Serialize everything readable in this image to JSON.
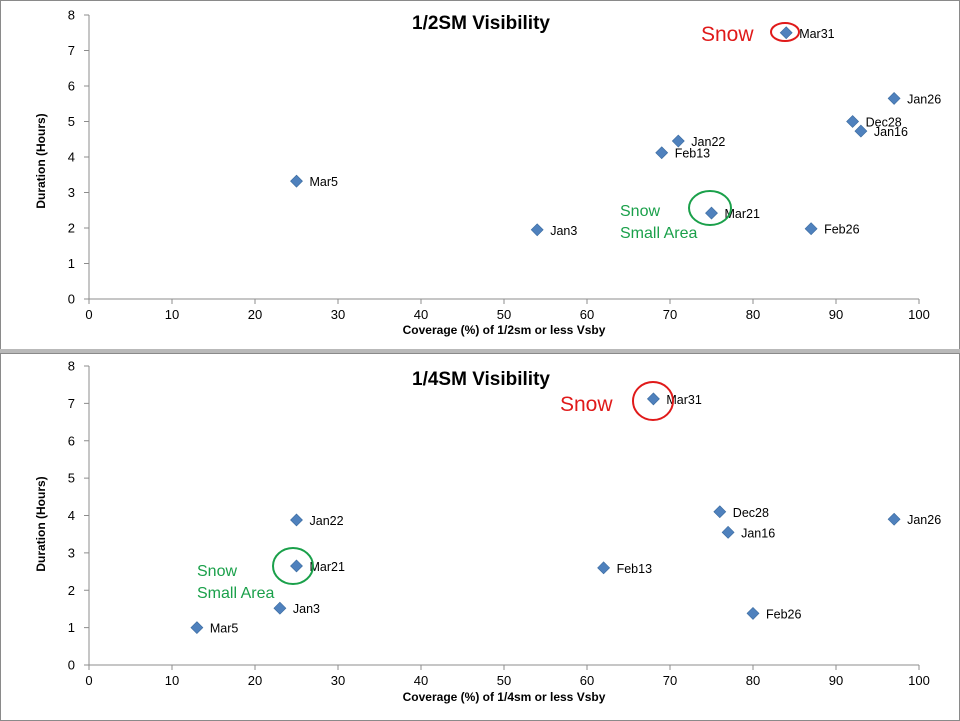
{
  "chart_data": [
    {
      "type": "scatter",
      "title": "1/2SM Visibility",
      "xlabel": "Coverage (%) of 1/2sm or less Vsby",
      "ylabel": "Duration (Hours)",
      "xlim": [
        0,
        100
      ],
      "ylim": [
        0,
        8
      ],
      "xticks": [
        0,
        10,
        20,
        30,
        40,
        50,
        60,
        70,
        80,
        90,
        100
      ],
      "yticks": [
        0,
        1,
        2,
        3,
        4,
        5,
        6,
        7,
        8
      ],
      "grid": false,
      "marker_color": "#4f81bd",
      "points": [
        {
          "label": "Mar31",
          "x": 84,
          "y": 7.5
        },
        {
          "label": "Jan26",
          "x": 97,
          "y": 5.65
        },
        {
          "label": "Dec28",
          "x": 92,
          "y": 5.0
        },
        {
          "label": "Jan16",
          "x": 93,
          "y": 4.73
        },
        {
          "label": "Jan22",
          "x": 71,
          "y": 4.45
        },
        {
          "label": "Feb13",
          "x": 69,
          "y": 4.12
        },
        {
          "label": "Mar5",
          "x": 25,
          "y": 3.32
        },
        {
          "label": "Mar21",
          "x": 75,
          "y": 2.42
        },
        {
          "label": "Jan3",
          "x": 54,
          "y": 1.95
        },
        {
          "label": "Feb26",
          "x": 87,
          "y": 1.98
        }
      ],
      "annotations": [
        {
          "point": "Mar31",
          "text": "Snow",
          "color": "#e01a1a"
        },
        {
          "point": "Mar21",
          "text": "Snow Small Area",
          "color": "#1aa04a"
        }
      ]
    },
    {
      "type": "scatter",
      "title": "1/4SM Visibility",
      "xlabel": "Coverage (%) of 1/4sm or less Vsby",
      "ylabel": "Duration (Hours)",
      "xlim": [
        0,
        100
      ],
      "ylim": [
        0,
        8
      ],
      "xticks": [
        0,
        10,
        20,
        30,
        40,
        50,
        60,
        70,
        80,
        90,
        100
      ],
      "yticks": [
        0,
        1,
        2,
        3,
        4,
        5,
        6,
        7,
        8
      ],
      "grid": false,
      "marker_color": "#4f81bd",
      "points": [
        {
          "label": "Mar31",
          "x": 68,
          "y": 7.12
        },
        {
          "label": "Dec28",
          "x": 76,
          "y": 4.1
        },
        {
          "label": "Jan26",
          "x": 97,
          "y": 3.9
        },
        {
          "label": "Jan22",
          "x": 25,
          "y": 3.88
        },
        {
          "label": "Jan16",
          "x": 77,
          "y": 3.55
        },
        {
          "label": "Mar21",
          "x": 25,
          "y": 2.65
        },
        {
          "label": "Feb13",
          "x": 62,
          "y": 2.6
        },
        {
          "label": "Jan3",
          "x": 23,
          "y": 1.52
        },
        {
          "label": "Feb26",
          "x": 80,
          "y": 1.38
        },
        {
          "label": "Mar5",
          "x": 13,
          "y": 1.0
        }
      ],
      "annotations": [
        {
          "point": "Mar31",
          "text": "Snow",
          "color": "#e01a1a"
        },
        {
          "point": "Mar21",
          "text": "Snow Small Area",
          "color": "#1aa04a"
        }
      ]
    }
  ]
}
